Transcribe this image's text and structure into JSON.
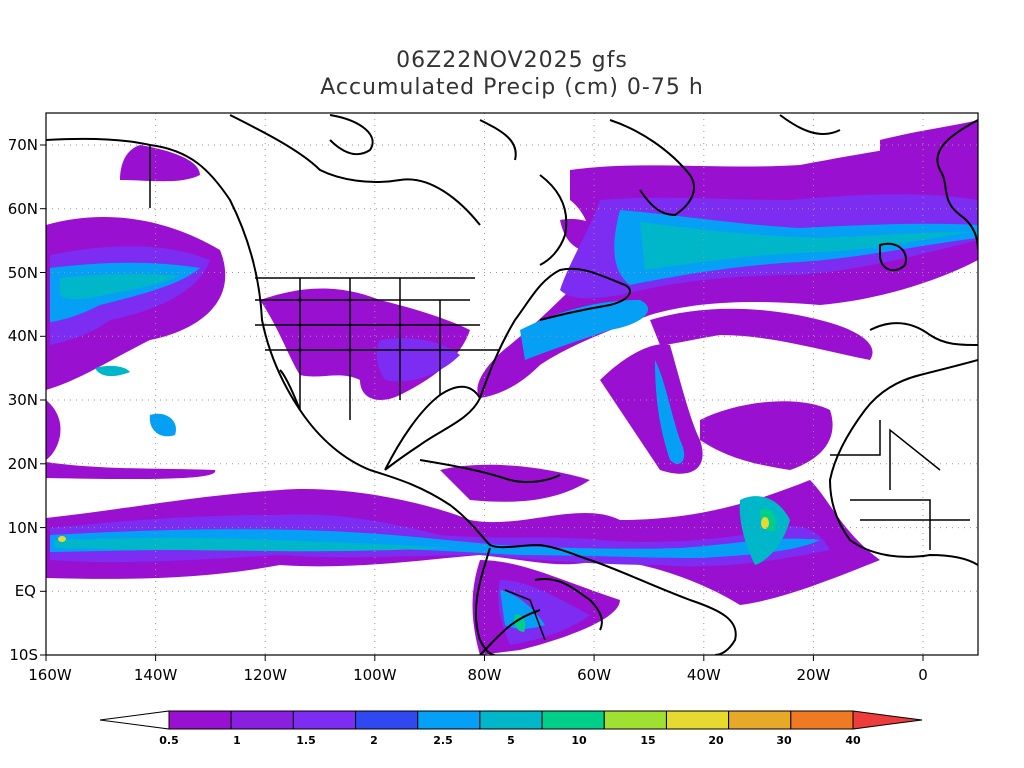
{
  "title": {
    "line1": "06Z22NOV2025 gfs",
    "line2": "Accumulated Precip (cm) 0-75 h"
  },
  "axes": {
    "lon_labels": [
      "160W",
      "140W",
      "120W",
      "100W",
      "80W",
      "60W",
      "40W",
      "20W",
      "0"
    ],
    "lat_labels": [
      "70N",
      "60N",
      "50N",
      "40N",
      "30N",
      "20N",
      "10N",
      "EQ",
      "10S"
    ],
    "lon_range": [
      -160,
      10
    ],
    "lat_range": [
      -10,
      75
    ],
    "grid": "dotted"
  },
  "colorbar": {
    "labels": [
      "0.5",
      "1",
      "1.5",
      "2",
      "2.5",
      "5",
      "10",
      "15",
      "20",
      "30",
      "40"
    ],
    "colors": [
      "#ffffff",
      "#9a10d0",
      "#8a1fe0",
      "#7d2cf2",
      "#2f48f2",
      "#05a0f5",
      "#00b7c9",
      "#00cf8a",
      "#9fe030",
      "#e6da2e",
      "#e8a928",
      "#f07a24",
      "#ee3b3b"
    ]
  },
  "map": {
    "colors": {
      "purple": "#9a10d0",
      "violet": "#7d2cf2",
      "blue": "#05a0f5",
      "teal": "#00b7c9",
      "green": "#00cf8a",
      "yellow": "#e6da2e",
      "coast": "#000000"
    }
  }
}
